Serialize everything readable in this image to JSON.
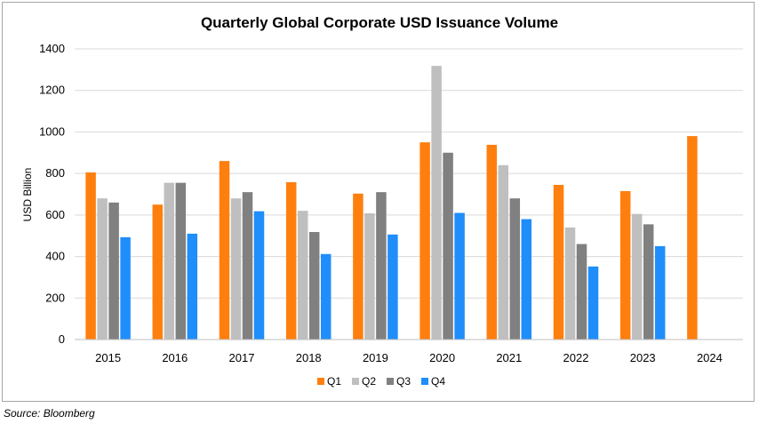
{
  "chart_data": {
    "type": "bar",
    "title": "Quarterly Global Corporate USD Issuance Volume",
    "ylabel": "USD Billion",
    "xlabel": "",
    "ylim": [
      0,
      1400
    ],
    "yticks": [
      0,
      200,
      400,
      600,
      800,
      1000,
      1200,
      1400
    ],
    "grid": true,
    "legend_position": "bottom",
    "categories": [
      "2015",
      "2016",
      "2017",
      "2018",
      "2019",
      "2020",
      "2021",
      "2022",
      "2023",
      "2024"
    ],
    "series": [
      {
        "name": "Q1",
        "color": "#ff7f0e",
        "values": [
          805,
          650,
          860,
          758,
          703,
          950,
          938,
          745,
          715,
          980
        ]
      },
      {
        "name": "Q2",
        "color": "#bfbfbf",
        "values": [
          680,
          755,
          680,
          620,
          608,
          1318,
          840,
          540,
          605,
          null
        ]
      },
      {
        "name": "Q3",
        "color": "#808080",
        "values": [
          660,
          755,
          710,
          518,
          710,
          900,
          680,
          460,
          555,
          null
        ]
      },
      {
        "name": "Q4",
        "color": "#1f8efa",
        "values": [
          493,
          510,
          618,
          412,
          506,
          610,
          580,
          352,
          450,
          null
        ]
      }
    ]
  },
  "footer": {
    "source": "Source: Bloomberg"
  }
}
